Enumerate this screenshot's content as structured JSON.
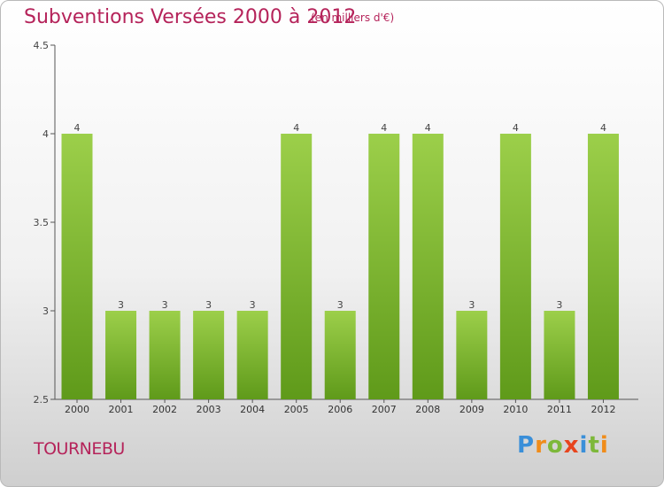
{
  "header": {
    "title": "Subventions Versées 2000 à 2012",
    "subtitle": "(en milliers d'€)"
  },
  "footer": {
    "commune": "TOURNEBU",
    "logo_text": "Proxiti"
  },
  "colors": {
    "bar_light": "#9ccf4a",
    "bar_dark": "#5f9a1a",
    "title": "#b5235a",
    "axis": "#555555"
  },
  "chart_data": {
    "type": "bar",
    "categories": [
      "2000",
      "2001",
      "2002",
      "2003",
      "2004",
      "2005",
      "2006",
      "2007",
      "2008",
      "2009",
      "2010",
      "2011",
      "2012"
    ],
    "values": [
      4,
      3,
      3,
      3,
      3,
      4,
      3,
      4,
      4,
      3,
      4,
      3,
      4
    ],
    "data_labels": [
      "4",
      "3",
      "3",
      "3",
      "3",
      "4",
      "3",
      "4",
      "4",
      "3",
      "4",
      "3",
      "4"
    ],
    "yticks": [
      "2.5",
      "3",
      "3.5",
      "4",
      "4.5"
    ],
    "ylim": [
      2.5,
      4.5
    ],
    "title": "Subventions Versées 2000 à 2012",
    "xlabel": "",
    "ylabel": "",
    "grid": false,
    "legend": "none"
  }
}
